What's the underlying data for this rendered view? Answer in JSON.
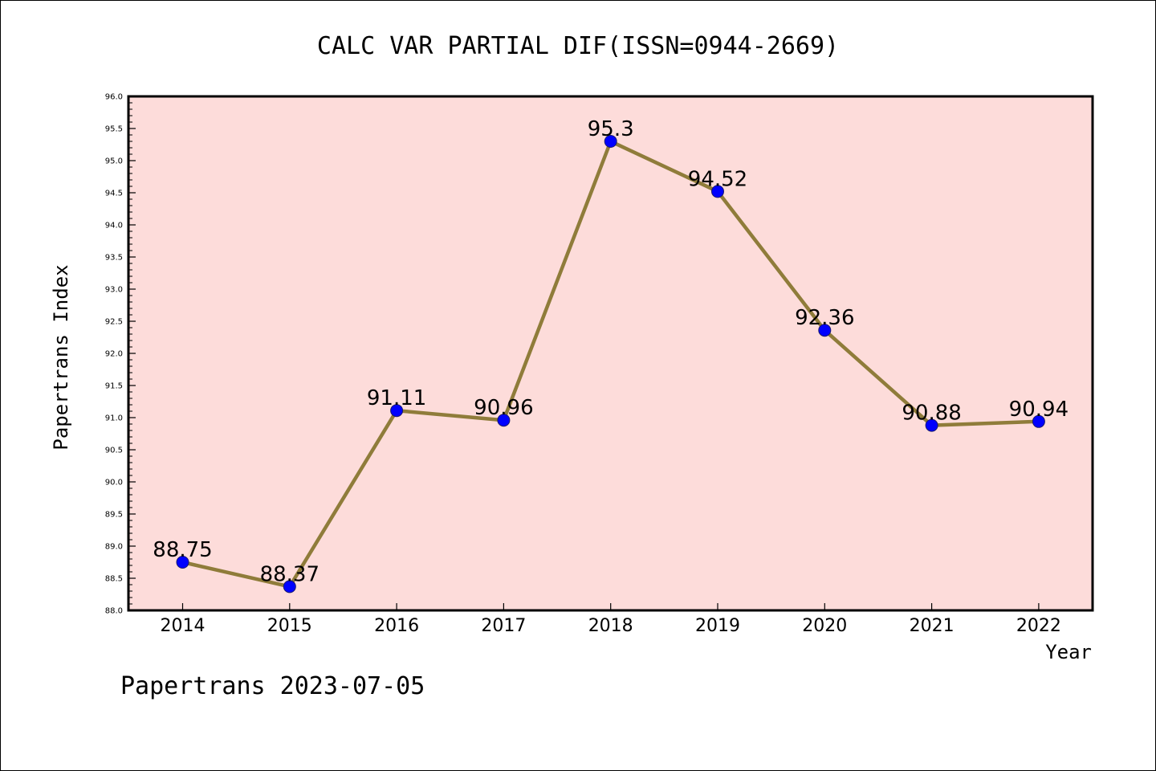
{
  "chart_data": {
    "type": "line",
    "title": "CALC VAR PARTIAL DIF(ISSN=0944-2669)",
    "xlabel": "Year",
    "ylabel": "Papertrans Index",
    "categories": [
      "2014",
      "2015",
      "2016",
      "2017",
      "2018",
      "2019",
      "2020",
      "2021",
      "2022"
    ],
    "series": [
      {
        "values": [
          88.75,
          88.37,
          91.11,
          90.96,
          95.3,
          94.52,
          92.36,
          90.88,
          90.94
        ],
        "data_labels": [
          "88.75",
          "88.37",
          "91.11",
          "90.96",
          "95.3",
          "94.52",
          "92.36",
          "90.88",
          "90.94"
        ]
      }
    ],
    "ylim": [
      88.0,
      96.0
    ],
    "yticks": [
      "88.0",
      "88.5",
      "89.0",
      "89.5",
      "90.0",
      "90.5",
      "91.0",
      "91.5",
      "92.0",
      "92.5",
      "93.0",
      "93.5",
      "94.0",
      "94.5",
      "95.0",
      "95.5",
      "96.0"
    ],
    "grid": false,
    "legend": "none",
    "colors": {
      "plot_background": "#fddcda",
      "line": "#8f7c3a",
      "marker": "#0000ff"
    }
  },
  "footer": "Papertrans 2023-07-05"
}
